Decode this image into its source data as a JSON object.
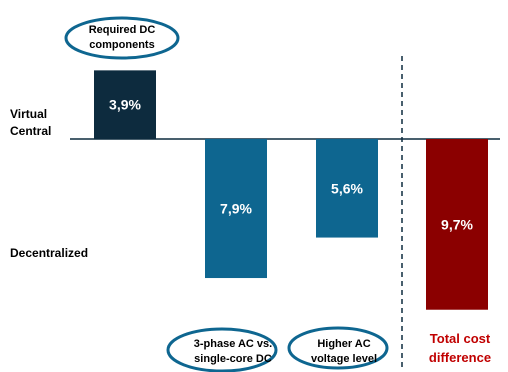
{
  "chart_data": {
    "type": "bar",
    "subtype": "waterfall",
    "title": "",
    "xlabel": "",
    "ylabel": "",
    "baseline": 0,
    "ylim": [
      -11,
      5
    ],
    "row_labels": {
      "top": [
        "Virtual",
        "Central"
      ],
      "bottom": "Decentralized"
    },
    "categories": [
      [
        "Required DC",
        "components"
      ],
      [
        "3-phase AC vs.",
        "single-core DC"
      ],
      [
        "Higher AC",
        "voltage level"
      ],
      [
        "Total cost",
        "difference"
      ]
    ],
    "values": [
      3.9,
      -7.9,
      -5.6,
      -9.7
    ],
    "value_labels": [
      "3,9%",
      "7,9%",
      "5,6%",
      "9,7%"
    ],
    "colors": [
      "#0d2b3e",
      "#0e6690",
      "#0e6690",
      "#8b0000"
    ],
    "category_label_color": [
      "#000000",
      "#000000",
      "#000000",
      "#c00000"
    ],
    "circled_categories": [
      0,
      1,
      2
    ],
    "circle_color": "#0e6690",
    "divider": "dashed vertical line before total"
  }
}
